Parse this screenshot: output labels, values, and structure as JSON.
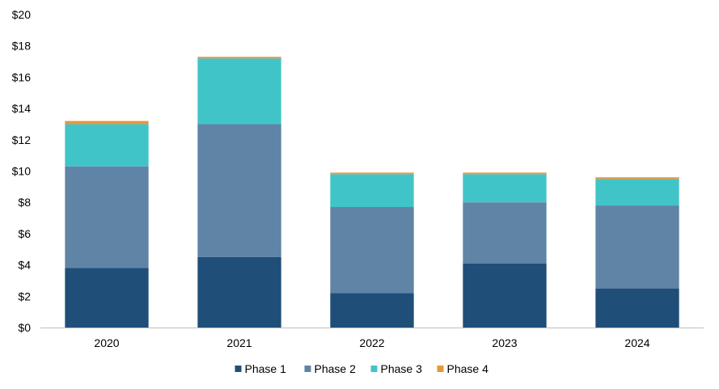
{
  "chart_data": {
    "type": "bar",
    "stacked": true,
    "title": "",
    "xlabel": "",
    "ylabel": "",
    "categories": [
      "2020",
      "2021",
      "2022",
      "2023",
      "2024"
    ],
    "series": [
      {
        "name": "Phase 1",
        "color": "#1f4e79",
        "values": [
          3.8,
          4.5,
          2.2,
          4.1,
          2.5
        ]
      },
      {
        "name": "Phase 2",
        "color": "#5f84a6",
        "values": [
          6.5,
          8.5,
          5.5,
          3.9,
          5.3
        ]
      },
      {
        "name": "Phase 3",
        "color": "#41c4c8",
        "values": [
          2.7,
          4.2,
          2.1,
          1.8,
          1.7
        ]
      },
      {
        "name": "Phase 4",
        "color": "#e8963c",
        "values": [
          0.2,
          0.1,
          0.1,
          0.1,
          0.1
        ]
      }
    ],
    "ylim": [
      0,
      20
    ],
    "y_ticks": [
      "$0",
      "$2",
      "$4",
      "$6",
      "$8",
      "$10",
      "$12",
      "$14",
      "$16",
      "$18",
      "$20"
    ],
    "grid": false,
    "legend_position": "bottom"
  }
}
